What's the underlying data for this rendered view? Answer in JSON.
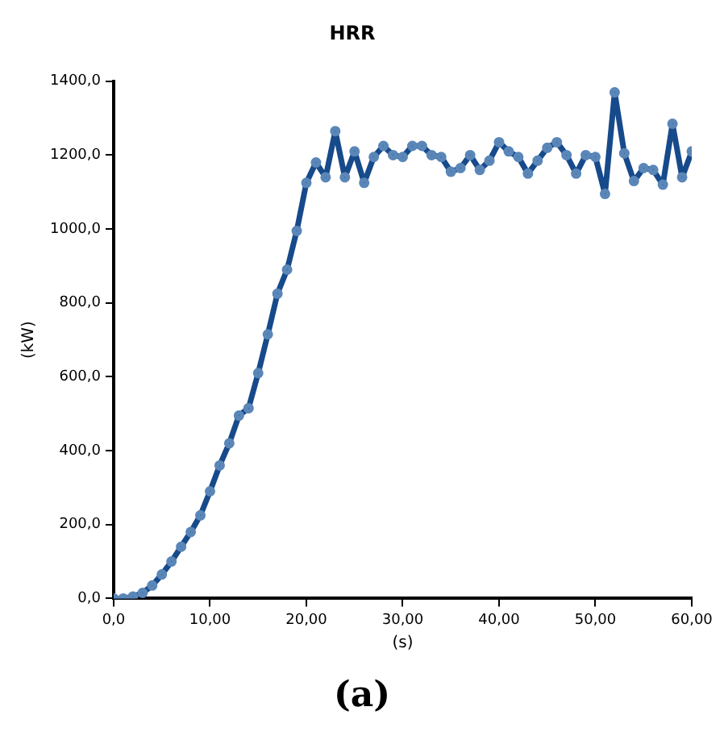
{
  "chart_data": {
    "type": "line",
    "title": "HRR",
    "xlabel": "(s)",
    "ylabel": "(kW)",
    "annotations": [
      "(a)"
    ],
    "x": [
      0,
      1,
      2,
      3,
      4,
      5,
      6,
      7,
      8,
      9,
      10,
      11,
      12,
      13,
      14,
      15,
      16,
      17,
      18,
      19,
      20,
      21,
      22,
      23,
      24,
      25,
      26,
      27,
      28,
      29,
      30,
      31,
      32,
      33,
      34,
      35,
      36,
      37,
      38,
      39,
      40,
      41,
      42,
      43,
      44,
      45,
      46,
      47,
      48,
      49,
      50,
      51,
      52,
      53,
      54,
      55,
      56,
      57,
      58,
      59,
      60
    ],
    "series": [
      {
        "color": "#174a8b",
        "values": [
          0,
          0,
          5,
          15,
          35,
          65,
          100,
          140,
          180,
          225,
          290,
          360,
          420,
          495,
          515,
          610,
          715,
          825,
          890,
          995,
          1125,
          1180,
          1140,
          1265,
          1140,
          1210,
          1125,
          1195,
          1225,
          1200,
          1195,
          1225,
          1225,
          1200,
          1195,
          1155,
          1165,
          1200,
          1160,
          1185,
          1235,
          1210,
          1195,
          1150,
          1185,
          1220,
          1235,
          1200,
          1150,
          1200,
          1195,
          1095,
          1370,
          1205,
          1130,
          1165,
          1160,
          1120,
          1285,
          1140,
          1210
        ]
      }
    ],
    "xlim": [
      0,
      60
    ],
    "ylim": [
      0,
      1400
    ],
    "xticks": [
      {
        "value": 0,
        "label": "0,0"
      },
      {
        "value": 10,
        "label": "10,00"
      },
      {
        "value": 20,
        "label": "20,00"
      },
      {
        "value": 30,
        "label": "30,00"
      },
      {
        "value": 40,
        "label": "40,00"
      },
      {
        "value": 50,
        "label": "50,00"
      },
      {
        "value": 60,
        "label": "60,00"
      }
    ],
    "yticks": [
      {
        "value": 0,
        "label": "0,0"
      },
      {
        "value": 200,
        "label": "200,0"
      },
      {
        "value": 400,
        "label": "400,0"
      },
      {
        "value": 600,
        "label": "600,0"
      },
      {
        "value": 800,
        "label": "800,0"
      },
      {
        "value": 1000,
        "label": "1000,0"
      },
      {
        "value": 1200,
        "label": "1200,0"
      },
      {
        "value": 1400,
        "label": "1400,0"
      }
    ],
    "grid": false,
    "legend": false,
    "marker": "circle",
    "line_style": "solid"
  }
}
